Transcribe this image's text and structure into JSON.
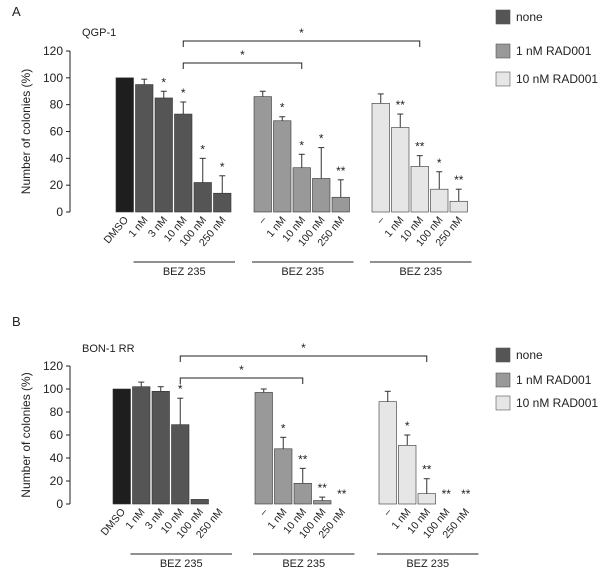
{
  "colors": {
    "black": "#1e1e1e",
    "dark": "#555555",
    "mid": "#999999",
    "light": "#e6e6e6"
  },
  "chart_data": [
    {
      "type": "bar",
      "panel_letter": "A",
      "cell_line": "QGP-1",
      "ylabel": "Number of colonies (%)",
      "ylim": [
        0,
        120
      ],
      "yticks": [
        0,
        20,
        40,
        60,
        80,
        100,
        120
      ],
      "legend": [
        "none",
        "1 nM RAD001",
        "10 nM RAD001"
      ],
      "group_label": "BEZ 235",
      "groups": [
        {
          "series": "none",
          "bars": [
            {
              "label": "DMSO",
              "value": 100,
              "err": 0,
              "sig": "",
              "color": "black"
            },
            {
              "label": "1 nM",
              "value": 95,
              "err": 4,
              "sig": "",
              "color": "dark"
            },
            {
              "label": "3 nM",
              "value": 85,
              "err": 5,
              "sig": "*",
              "color": "dark"
            },
            {
              "label": "10 nM",
              "value": 73,
              "err": 9,
              "sig": "*",
              "color": "dark"
            },
            {
              "label": "100 nM",
              "value": 22,
              "err": 18,
              "sig": "*",
              "color": "dark"
            },
            {
              "label": "250 nM",
              "value": 14,
              "err": 13,
              "sig": "*",
              "color": "dark"
            }
          ]
        },
        {
          "series": "1 nM RAD001",
          "bars": [
            {
              "label": "–",
              "value": 86,
              "err": 4,
              "sig": "",
              "color": "mid"
            },
            {
              "label": "1 nM",
              "value": 68,
              "err": 3,
              "sig": "*",
              "color": "mid"
            },
            {
              "label": "10 nM",
              "value": 33,
              "err": 10,
              "sig": "*",
              "color": "mid"
            },
            {
              "label": "100 nM",
              "value": 25,
              "err": 23,
              "sig": "*",
              "color": "mid"
            },
            {
              "label": "250 nM",
              "value": 11,
              "err": 13,
              "sig": "**",
              "color": "mid"
            }
          ]
        },
        {
          "series": "10 nM RAD001",
          "bars": [
            {
              "label": "–",
              "value": 81,
              "err": 7,
              "sig": "",
              "color": "light"
            },
            {
              "label": "1 nM",
              "value": 63,
              "err": 10,
              "sig": "**",
              "color": "light"
            },
            {
              "label": "10 nM",
              "value": 34,
              "err": 8,
              "sig": "**",
              "color": "light"
            },
            {
              "label": "100 nM",
              "value": 17,
              "err": 13,
              "sig": "*",
              "color": "light"
            },
            {
              "label": "250 nM",
              "value": 8,
              "err": 9,
              "sig": "**",
              "color": "light"
            }
          ]
        }
      ],
      "brackets": [
        {
          "from_group": 0,
          "from_bar": 3,
          "to_group": 1,
          "to_bar": 2,
          "sig": "*"
        },
        {
          "from_group": 0,
          "from_bar": 3,
          "to_group": 2,
          "to_bar": 2,
          "sig": "*"
        }
      ]
    },
    {
      "type": "bar",
      "panel_letter": "B",
      "cell_line": "BON-1 RR",
      "ylabel": "Number of colonies (%)",
      "ylim": [
        0,
        120
      ],
      "yticks": [
        0,
        20,
        40,
        60,
        80,
        100,
        120
      ],
      "legend": [
        "none",
        "1 nM RAD001",
        "10 nM RAD001"
      ],
      "group_label": "BEZ 235",
      "groups": [
        {
          "series": "none",
          "bars": [
            {
              "label": "DMSO",
              "value": 100,
              "err": 0,
              "sig": "",
              "color": "black"
            },
            {
              "label": "1 nM",
              "value": 102,
              "err": 4,
              "sig": "",
              "color": "dark"
            },
            {
              "label": "3 nM",
              "value": 98,
              "err": 4,
              "sig": "",
              "color": "dark"
            },
            {
              "label": "10 nM",
              "value": 69,
              "err": 23,
              "sig": "*",
              "color": "dark"
            },
            {
              "label": "100 nM",
              "value": 4,
              "err": 0,
              "sig": "",
              "color": "dark"
            },
            {
              "label": "250 nM",
              "value": 0,
              "err": 0,
              "sig": "",
              "color": "dark"
            }
          ]
        },
        {
          "series": "1 nM RAD001",
          "bars": [
            {
              "label": "–",
              "value": 97,
              "err": 3,
              "sig": "",
              "color": "mid"
            },
            {
              "label": "1 nM",
              "value": 48,
              "err": 10,
              "sig": "*",
              "color": "mid"
            },
            {
              "label": "10 nM",
              "value": 18,
              "err": 13,
              "sig": "**",
              "color": "mid"
            },
            {
              "label": "100 nM",
              "value": 3,
              "err": 3,
              "sig": "**",
              "color": "mid"
            },
            {
              "label": "250 nM",
              "value": 0,
              "err": 0,
              "sig": "**",
              "color": "mid"
            }
          ]
        },
        {
          "series": "10 nM RAD001",
          "bars": [
            {
              "label": "–",
              "value": 89,
              "err": 9,
              "sig": "",
              "color": "light"
            },
            {
              "label": "1 nM",
              "value": 51,
              "err": 9,
              "sig": "*",
              "color": "light"
            },
            {
              "label": "10 nM",
              "value": 9,
              "err": 13,
              "sig": "**",
              "color": "light"
            },
            {
              "label": "100 nM",
              "value": 0,
              "err": 0,
              "sig": "**",
              "color": "light"
            },
            {
              "label": "250 nM",
              "value": 0,
              "err": 0,
              "sig": "**",
              "color": "light"
            }
          ]
        }
      ],
      "brackets": [
        {
          "from_group": 0,
          "from_bar": 3,
          "to_group": 1,
          "to_bar": 2,
          "sig": "*"
        },
        {
          "from_group": 0,
          "from_bar": 3,
          "to_group": 2,
          "to_bar": 2,
          "sig": "*"
        }
      ]
    }
  ]
}
